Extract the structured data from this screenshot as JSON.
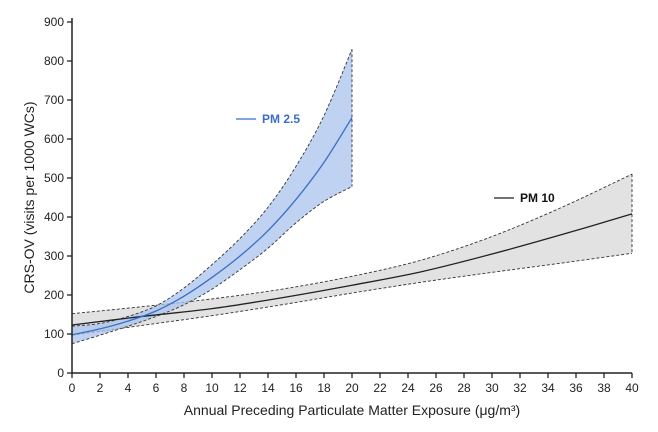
{
  "chart_data": {
    "type": "line",
    "xlabel": "Annual Preceding Particulate Matter Exposure (μg/m³)",
    "ylabel": "CRS-OV (visits per 1000 WCs)",
    "xlim": [
      0,
      40
    ],
    "ylim": [
      0,
      900
    ],
    "x_ticks": [
      "0",
      "2",
      "4",
      "6",
      "8",
      "10",
      "12",
      "14",
      "16",
      "18",
      "20",
      "22",
      "24",
      "26",
      "28",
      "30",
      "32",
      "34",
      "36",
      "38",
      "40"
    ],
    "y_ticks": [
      "0",
      "100",
      "200",
      "300",
      "400",
      "500",
      "600",
      "700",
      "800",
      "900"
    ],
    "grid": false,
    "series": [
      {
        "name": "PM 2.5",
        "color": "#3a6fc4",
        "band_color": "#a9c3ec",
        "x": [
          0,
          2,
          4,
          6,
          8,
          10,
          12,
          14,
          16,
          18,
          20
        ],
        "y": [
          98,
          113,
          133,
          159,
          197,
          245,
          300,
          365,
          445,
          540,
          655
        ],
        "lower": [
          75,
          97,
          120,
          145,
          175,
          215,
          265,
          320,
          385,
          440,
          478
        ],
        "upper": [
          120,
          127,
          145,
          172,
          218,
          278,
          345,
          425,
          530,
          660,
          830
        ]
      },
      {
        "name": "PM 10",
        "color": "#222222",
        "band_color": "#d8d8d8",
        "x": [
          0,
          5,
          10,
          15,
          20,
          25,
          30,
          35,
          40
        ],
        "y": [
          123,
          145,
          165,
          193,
          225,
          260,
          305,
          355,
          408
        ],
        "lower": [
          97,
          122,
          147,
          175,
          205,
          233,
          258,
          282,
          307
        ],
        "upper": [
          152,
          170,
          190,
          215,
          248,
          290,
          350,
          425,
          510
        ]
      }
    ]
  }
}
